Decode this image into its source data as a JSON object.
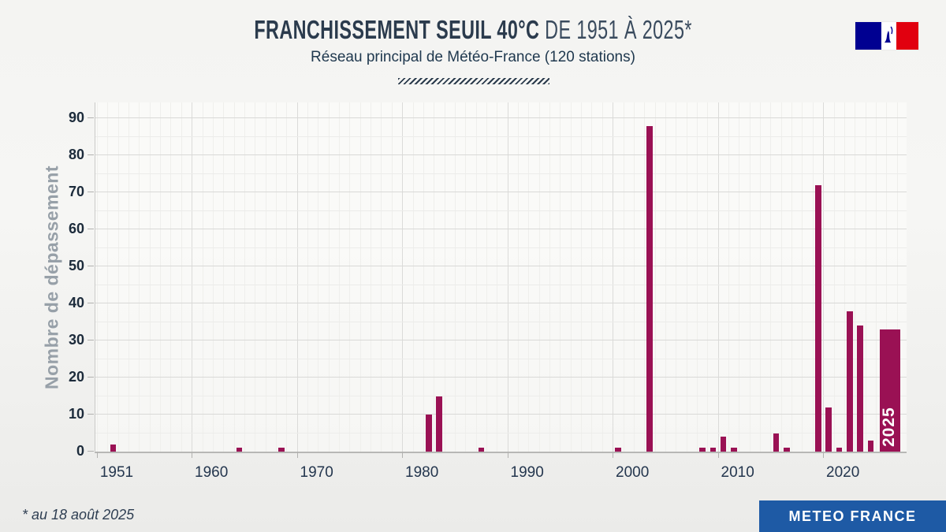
{
  "header": {
    "title_bold": "FRANCHISSEMENT SEUIL 40°C",
    "title_light": " DE 1951 À 2025*",
    "subtitle": "Réseau principal de Météo-France (120 stations)"
  },
  "logo": {
    "name": "french-republic-marianne-logo",
    "blue": "#000091",
    "red": "#E1000F"
  },
  "chart_data": {
    "type": "bar",
    "title": "Franchissement seuil 40°C de 1951 à 2025",
    "xlabel": "",
    "ylabel": "Nombre de dépassement",
    "ylim": [
      0,
      95
    ],
    "x_range": [
      1950,
      2027
    ],
    "y_ticks": [
      0,
      10,
      20,
      30,
      40,
      50,
      60,
      70,
      80,
      90
    ],
    "x_ticks": [
      1951,
      1960,
      1970,
      1980,
      1990,
      2000,
      2010,
      2020
    ],
    "grid": "vertical line each year (decades darker), horizontal minor every 5, major every 10",
    "legend": "none",
    "bar_color": "#9A1154",
    "highlight_year": 2025,
    "highlight_label": "2025",
    "points": [
      {
        "year": 1952,
        "value": 2
      },
      {
        "year": 1964,
        "value": 1
      },
      {
        "year": 1968,
        "value": 1
      },
      {
        "year": 1982,
        "value": 10
      },
      {
        "year": 1983,
        "value": 15
      },
      {
        "year": 1987,
        "value": 1
      },
      {
        "year": 2000,
        "value": 1
      },
      {
        "year": 2003,
        "value": 88
      },
      {
        "year": 2008,
        "value": 1
      },
      {
        "year": 2009,
        "value": 1
      },
      {
        "year": 2010,
        "value": 4
      },
      {
        "year": 2011,
        "value": 1
      },
      {
        "year": 2015,
        "value": 5
      },
      {
        "year": 2016,
        "value": 1
      },
      {
        "year": 2019,
        "value": 72
      },
      {
        "year": 2020,
        "value": 12
      },
      {
        "year": 2021,
        "value": 1
      },
      {
        "year": 2022,
        "value": 38
      },
      {
        "year": 2023,
        "value": 34
      },
      {
        "year": 2024,
        "value": 3
      },
      {
        "year": 2025,
        "value": 33
      }
    ]
  },
  "footer": {
    "note": "* au 18 août 2025",
    "brand": "METEO FRANCE",
    "brand_bg": "#1E5AA5"
  }
}
